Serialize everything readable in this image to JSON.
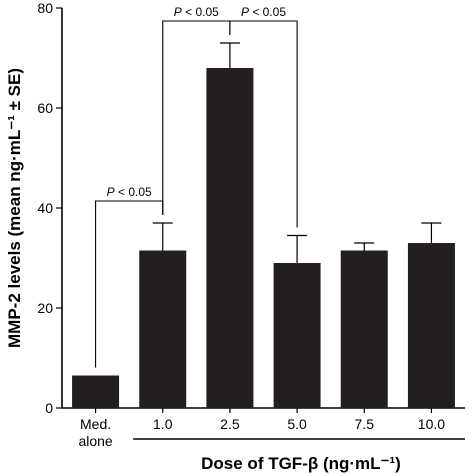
{
  "chart_data": {
    "type": "bar",
    "categories": [
      [
        "Med.",
        "alone"
      ],
      [
        "1.0"
      ],
      [
        "2.5"
      ],
      [
        "5.0"
      ],
      [
        "7.5"
      ],
      [
        "10.0"
      ]
    ],
    "values": [
      6.5,
      31.5,
      68,
      29,
      31.5,
      33
    ],
    "errors": [
      0,
      5.5,
      5,
      5.5,
      1.5,
      4
    ],
    "xlabel": "Dose of TGF-β (ng·mL⁻¹)",
    "ylabel": "MMP-2 levels (mean ng·mL⁻¹ ± SE)",
    "ylim": [
      0,
      80
    ],
    "yticks": [
      0,
      20,
      40,
      60,
      80
    ],
    "bar_color": "#231f20",
    "significance": [
      {
        "from": 0,
        "to": 1,
        "label": "P < 0.05"
      },
      {
        "from": 1,
        "to": 2,
        "label": "P < 0.05"
      },
      {
        "from": 2,
        "to": 3,
        "label": "P < 0.05"
      }
    ]
  }
}
